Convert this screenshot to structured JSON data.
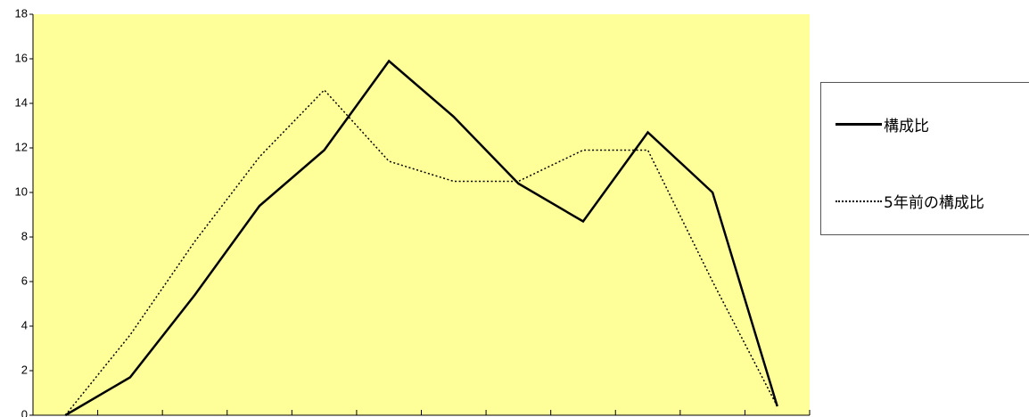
{
  "chart_data": {
    "type": "line",
    "title": "",
    "xlabel": "",
    "ylabel": "",
    "ylim": [
      0,
      18
    ],
    "y_ticks": [
      "0",
      "2",
      "4",
      "6",
      "8",
      "10",
      "12",
      "14",
      "16",
      "18"
    ],
    "x_points": 12,
    "plot_background": "#ffff99",
    "grid": false,
    "legend_position": "right",
    "series": [
      {
        "name": "構成比",
        "style": "solid",
        "color": "#000000",
        "values": [
          0.0,
          1.7,
          5.4,
          9.4,
          11.9,
          15.9,
          13.4,
          10.4,
          8.7,
          12.7,
          10.0,
          0.4
        ]
      },
      {
        "name": "5年前の構成比",
        "style": "dotted",
        "color": "#000000",
        "values": [
          0.0,
          3.6,
          7.8,
          11.6,
          14.6,
          11.4,
          10.5,
          10.5,
          11.9,
          11.9,
          6.0,
          0.4
        ]
      }
    ]
  }
}
